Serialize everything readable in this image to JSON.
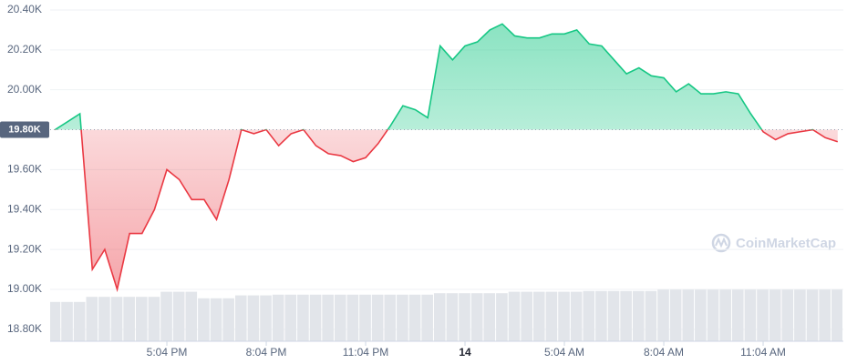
{
  "chart_data": {
    "type": "line",
    "categories": [
      null,
      null,
      null,
      null,
      null,
      null,
      null,
      null,
      null,
      "5:04 PM",
      null,
      null,
      null,
      null,
      null,
      null,
      null,
      "8:04 PM",
      null,
      null,
      null,
      null,
      null,
      null,
      null,
      "11:04 PM",
      null,
      null,
      null,
      null,
      null,
      null,
      null,
      "14",
      null,
      null,
      null,
      null,
      null,
      null,
      null,
      "5:04 AM",
      null,
      null,
      null,
      null,
      null,
      null,
      null,
      "8:04 AM",
      null,
      null,
      null,
      null,
      null,
      null,
      null,
      "11:04 AM",
      null,
      null,
      null,
      null,
      null,
      null
    ],
    "series": [
      {
        "name": "Price",
        "values": [
          19.8,
          19.84,
          19.88,
          19.1,
          19.2,
          19.0,
          19.28,
          19.28,
          19.4,
          19.6,
          19.55,
          19.45,
          19.45,
          19.35,
          19.55,
          19.8,
          19.78,
          19.8,
          19.72,
          19.78,
          19.8,
          19.72,
          19.68,
          19.67,
          19.64,
          19.66,
          19.73,
          19.82,
          19.92,
          19.9,
          19.86,
          20.22,
          20.15,
          20.22,
          20.24,
          20.3,
          20.33,
          20.27,
          20.26,
          20.26,
          20.28,
          20.28,
          20.3,
          20.23,
          20.22,
          20.15,
          20.08,
          20.11,
          20.07,
          20.06,
          19.99,
          20.03,
          19.98,
          19.98,
          19.99,
          19.98,
          19.88,
          19.79,
          19.75,
          19.78,
          19.79,
          19.8,
          19.76,
          19.74
        ],
        "color_up": "#16c784",
        "color_down": "#ea3943"
      },
      {
        "name": "Volume",
        "axis": "y2",
        "color": "#e2e5ea",
        "values": [
          54,
          54,
          54,
          61,
          61,
          61,
          61,
          61,
          61,
          68,
          68,
          68,
          59,
          59,
          59,
          63,
          63,
          63,
          64,
          64,
          64,
          64,
          64,
          64,
          64,
          64,
          64,
          64,
          64,
          64,
          64,
          66,
          66,
          66,
          66,
          66,
          66,
          68,
          68,
          68,
          68,
          68,
          68,
          69,
          69,
          69,
          69,
          69,
          69,
          71,
          71,
          71,
          71,
          71,
          71,
          71,
          71,
          71,
          71,
          71,
          71,
          71,
          71,
          71
        ]
      }
    ],
    "baseline": {
      "value": 19.8,
      "label": "19.80K"
    },
    "ylim": [
      18.74,
      20.45
    ],
    "yticks": [
      {
        "value": 18.8,
        "label": "18.80K"
      },
      {
        "value": 19.0,
        "label": "19.00K"
      },
      {
        "value": 19.2,
        "label": "19.20K"
      },
      {
        "value": 19.4,
        "label": "19.40K"
      },
      {
        "value": 19.6,
        "label": "19.60K"
      },
      {
        "value": 20.0,
        "label": "20.00K"
      },
      {
        "value": 20.2,
        "label": "20.20K"
      },
      {
        "value": 20.4,
        "label": "20.40K"
      }
    ],
    "y2lim": [
      0,
      100
    ],
    "grid": true,
    "watermark": "CoinMarketCap"
  }
}
